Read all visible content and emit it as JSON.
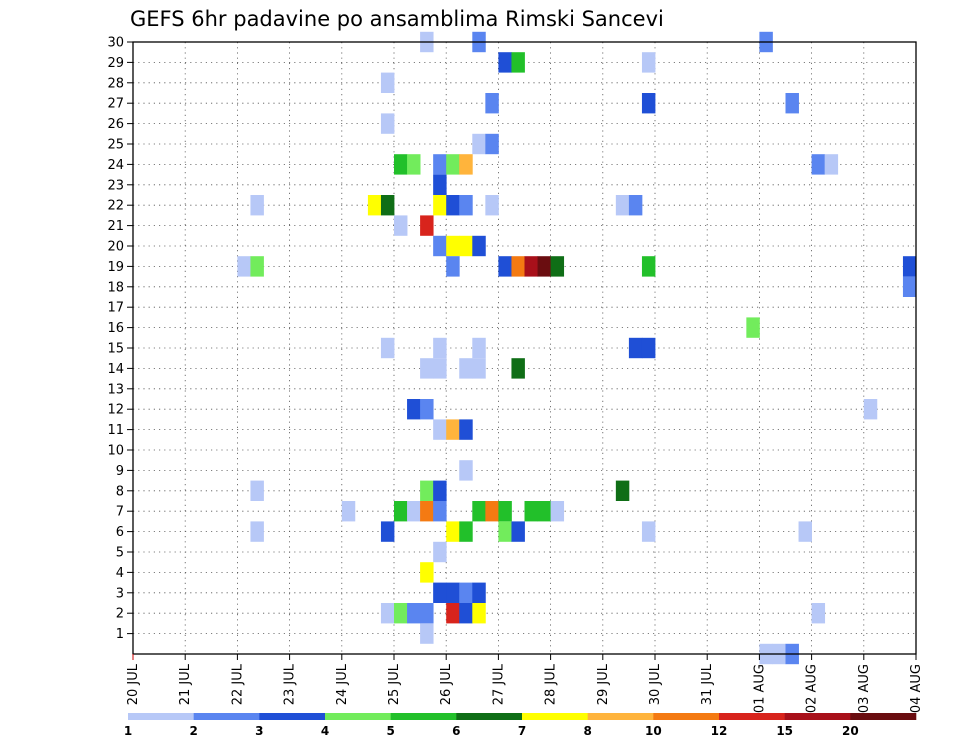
{
  "chart_data": {
    "type": "heatmap",
    "title": "GEFS 6hr padavine po ansamblima Rimski Sancevi",
    "x_labels": [
      "20 JUL",
      "21 JUL",
      "22 JUL",
      "23 JUL",
      "24 JUL",
      "25 JUL",
      "26 JUL",
      "27 JUL",
      "28 JUL",
      "29 JUL",
      "30 JUL",
      "31 JUL",
      "01 AUG",
      "02 AUG",
      "03 AUG",
      "04 AUG"
    ],
    "y_labels": [
      "1",
      "2",
      "3",
      "4",
      "5",
      "6",
      "7",
      "8",
      "9",
      "10",
      "11",
      "12",
      "13",
      "14",
      "15",
      "16",
      "17",
      "18",
      "19",
      "20",
      "21",
      "22",
      "23",
      "24",
      "25",
      "26",
      "27",
      "28",
      "29",
      "30"
    ],
    "x_unit": "6-hour step from 20 JUL 00Z",
    "grid": true,
    "colorbar": {
      "labels": [
        "1",
        "2",
        "3",
        "4",
        "5",
        "6",
        "7",
        "8",
        "10",
        "12",
        "15",
        "20"
      ],
      "colors": [
        "#b7c8f7",
        "#5a85f0",
        "#1f4fd6",
        "#72ec5c",
        "#22c02a",
        "#0f6e16",
        "#ffff00",
        "#ffb43c",
        "#f47a12",
        "#d8241c",
        "#a8101a",
        "#6a0d10"
      ]
    },
    "cells": [
      {
        "m": 30,
        "t": 22,
        "c": 0
      },
      {
        "m": 30,
        "t": 26,
        "c": 1
      },
      {
        "m": 30,
        "t": 48,
        "c": 1
      },
      {
        "m": 29,
        "t": 28,
        "c": 2
      },
      {
        "m": 29,
        "t": 29,
        "c": 4
      },
      {
        "m": 29,
        "t": 39,
        "c": 0
      },
      {
        "m": 28,
        "t": 19,
        "c": 0
      },
      {
        "m": 27,
        "t": 27,
        "c": 1
      },
      {
        "m": 27,
        "t": 39,
        "c": 2
      },
      {
        "m": 27,
        "t": 50,
        "c": 1
      },
      {
        "m": 26,
        "t": 19,
        "c": 0
      },
      {
        "m": 25,
        "t": 26,
        "c": 0
      },
      {
        "m": 25,
        "t": 27,
        "c": 1
      },
      {
        "m": 24,
        "t": 20,
        "c": 4
      },
      {
        "m": 24,
        "t": 21,
        "c": 3
      },
      {
        "m": 24,
        "t": 23,
        "c": 1
      },
      {
        "m": 24,
        "t": 24,
        "c": 3
      },
      {
        "m": 24,
        "t": 25,
        "c": 7
      },
      {
        "m": 24,
        "t": 52,
        "c": 1
      },
      {
        "m": 24,
        "t": 53,
        "c": 0
      },
      {
        "m": 23,
        "t": 23,
        "c": 2
      },
      {
        "m": 22,
        "t": 9,
        "c": 0
      },
      {
        "m": 22,
        "t": 18,
        "c": 6
      },
      {
        "m": 22,
        "t": 19,
        "c": 5
      },
      {
        "m": 22,
        "t": 23,
        "c": 6
      },
      {
        "m": 22,
        "t": 24,
        "c": 2
      },
      {
        "m": 22,
        "t": 25,
        "c": 1
      },
      {
        "m": 22,
        "t": 27,
        "c": 0
      },
      {
        "m": 22,
        "t": 37,
        "c": 0
      },
      {
        "m": 22,
        "t": 38,
        "c": 1
      },
      {
        "m": 21,
        "t": 20,
        "c": 0
      },
      {
        "m": 21,
        "t": 22,
        "c": 9
      },
      {
        "m": 20,
        "t": 23,
        "c": 1
      },
      {
        "m": 20,
        "t": 24,
        "c": 6
      },
      {
        "m": 20,
        "t": 25,
        "c": 6
      },
      {
        "m": 20,
        "t": 26,
        "c": 2
      },
      {
        "m": 19,
        "t": 59,
        "c": 2
      },
      {
        "m": 19,
        "t": 8,
        "c": 0
      },
      {
        "m": 19,
        "t": 9,
        "c": 3
      },
      {
        "m": 19,
        "t": 24,
        "c": 1
      },
      {
        "m": 19,
        "t": 28,
        "c": 2
      },
      {
        "m": 19,
        "t": 29,
        "c": 8
      },
      {
        "m": 19,
        "t": 30,
        "c": 10
      },
      {
        "m": 19,
        "t": 31,
        "c": 11
      },
      {
        "m": 19,
        "t": 32,
        "c": 5
      },
      {
        "m": 19,
        "t": 39,
        "c": 4
      },
      {
        "m": 18,
        "t": 59,
        "c": 1
      },
      {
        "m": 16,
        "t": 47,
        "c": 3
      },
      {
        "m": 15,
        "t": 19,
        "c": 0
      },
      {
        "m": 15,
        "t": 23,
        "c": 0
      },
      {
        "m": 15,
        "t": 26,
        "c": 0
      },
      {
        "m": 15,
        "t": 38,
        "c": 2
      },
      {
        "m": 15,
        "t": 39,
        "c": 2
      },
      {
        "m": 14,
        "t": 22,
        "c": 0
      },
      {
        "m": 14,
        "t": 23,
        "c": 0
      },
      {
        "m": 14,
        "t": 25,
        "c": 0
      },
      {
        "m": 14,
        "t": 26,
        "c": 0
      },
      {
        "m": 14,
        "t": 29,
        "c": 5
      },
      {
        "m": 12,
        "t": 21,
        "c": 2
      },
      {
        "m": 12,
        "t": 22,
        "c": 1
      },
      {
        "m": 12,
        "t": 56,
        "c": 0
      },
      {
        "m": 11,
        "t": 23,
        "c": 0
      },
      {
        "m": 11,
        "t": 24,
        "c": 7
      },
      {
        "m": 11,
        "t": 25,
        "c": 2
      },
      {
        "m": 9,
        "t": 25,
        "c": 0
      },
      {
        "m": 8,
        "t": 9,
        "c": 0
      },
      {
        "m": 8,
        "t": 22,
        "c": 3
      },
      {
        "m": 8,
        "t": 23,
        "c": 2
      },
      {
        "m": 8,
        "t": 37,
        "c": 5
      },
      {
        "m": 7,
        "t": 16,
        "c": 0
      },
      {
        "m": 7,
        "t": 20,
        "c": 4
      },
      {
        "m": 7,
        "t": 21,
        "c": 0
      },
      {
        "m": 7,
        "t": 22,
        "c": 8
      },
      {
        "m": 7,
        "t": 23,
        "c": 1
      },
      {
        "m": 7,
        "t": 26,
        "c": 4
      },
      {
        "m": 7,
        "t": 27,
        "c": 8
      },
      {
        "m": 7,
        "t": 28,
        "c": 4
      },
      {
        "m": 7,
        "t": 30,
        "c": 4
      },
      {
        "m": 7,
        "t": 31,
        "c": 4
      },
      {
        "m": 7,
        "t": 32,
        "c": 0
      },
      {
        "m": 6,
        "t": 9,
        "c": 0
      },
      {
        "m": 6,
        "t": 19,
        "c": 2
      },
      {
        "m": 6,
        "t": 24,
        "c": 6
      },
      {
        "m": 6,
        "t": 25,
        "c": 4
      },
      {
        "m": 6,
        "t": 28,
        "c": 3
      },
      {
        "m": 6,
        "t": 29,
        "c": 2
      },
      {
        "m": 6,
        "t": 39,
        "c": 0
      },
      {
        "m": 6,
        "t": 51,
        "c": 0
      },
      {
        "m": 5,
        "t": 23,
        "c": 0
      },
      {
        "m": 4,
        "t": 22,
        "c": 6
      },
      {
        "m": 3,
        "t": 23,
        "c": 2
      },
      {
        "m": 3,
        "t": 24,
        "c": 2
      },
      {
        "m": 3,
        "t": 25,
        "c": 1
      },
      {
        "m": 3,
        "t": 26,
        "c": 2
      },
      {
        "m": 2,
        "t": 19,
        "c": 0
      },
      {
        "m": 2,
        "t": 20,
        "c": 3
      },
      {
        "m": 2,
        "t": 21,
        "c": 1
      },
      {
        "m": 2,
        "t": 22,
        "c": 1
      },
      {
        "m": 2,
        "t": 24,
        "c": 9
      },
      {
        "m": 2,
        "t": 25,
        "c": 2
      },
      {
        "m": 2,
        "t": 26,
        "c": 6
      },
      {
        "m": 2,
        "t": 52,
        "c": 0
      },
      {
        "m": 1,
        "t": 22,
        "c": 0
      },
      {
        "m": 0,
        "t": 48,
        "c": 0
      },
      {
        "m": 0,
        "t": 49,
        "c": 0
      },
      {
        "m": 0,
        "t": 50,
        "c": 1
      }
    ]
  }
}
